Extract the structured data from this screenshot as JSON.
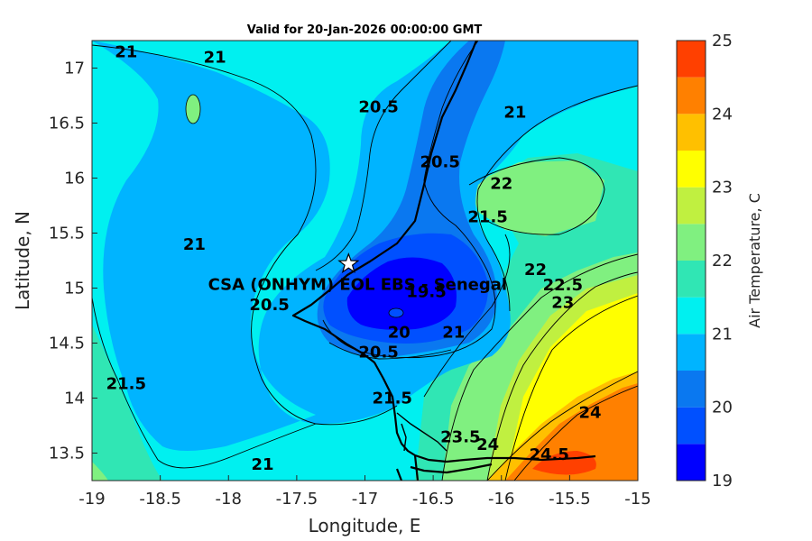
{
  "title": "Valid for 20-Jan-2026 00:00:00 GMT",
  "xlabel": "Longitude, E",
  "ylabel": "Latitude, N",
  "colorbar_label": "Air Temperature, C",
  "x_ticks": [
    "-19",
    "-18.5",
    "-18",
    "-17.5",
    "-17",
    "-16.5",
    "-16",
    "-15.5",
    "-15"
  ],
  "y_ticks": [
    "13.5",
    "14",
    "14.5",
    "15",
    "15.5",
    "16",
    "16.5",
    "17"
  ],
  "colorbar_ticks": [
    "19",
    "20",
    "21",
    "22",
    "23",
    "24",
    "25"
  ],
  "colors": {
    "c19": "#0000ff",
    "c19_5": "#0050ff",
    "c20": "#0a78f0",
    "c20_5": "#00b4ff",
    "c21": "#00f0f0",
    "c21_5": "#30e6b4",
    "c22": "#80f080",
    "c22_5": "#c0f040",
    "c23": "#ffff00",
    "c23_5": "#ffc000",
    "c24": "#ff8000",
    "c24_5": "#ff4000"
  },
  "station": {
    "label": "CSA (ONHYM) EOL EBS  - Senegal",
    "lon": -17.12,
    "lat": 15.22
  },
  "chart_data": {
    "type": "heatmap",
    "title": "Valid for 20-Jan-2026 00:00:00 GMT",
    "xlabel": "Longitude, E",
    "ylabel": "Latitude, N",
    "xlim": [
      -19,
      -15
    ],
    "ylim": [
      13.25,
      17.25
    ],
    "colorbar": {
      "label": "Air Temperature, C",
      "range": [
        19,
        25
      ],
      "step": 0.5
    },
    "contour_labels": [
      {
        "text": "21",
        "lon": -18.75,
        "lat": 17.1
      },
      {
        "text": "21",
        "lon": -18.1,
        "lat": 17.05
      },
      {
        "text": "20.5",
        "lon": -16.9,
        "lat": 16.6
      },
      {
        "text": "21",
        "lon": -15.9,
        "lat": 16.55
      },
      {
        "text": "20.5",
        "lon": -16.45,
        "lat": 16.1
      },
      {
        "text": "22",
        "lon": -16.0,
        "lat": 15.9
      },
      {
        "text": "21.5",
        "lon": -16.1,
        "lat": 15.6
      },
      {
        "text": "21",
        "lon": -18.25,
        "lat": 15.35
      },
      {
        "text": "20.5",
        "lon": -17.7,
        "lat": 14.8
      },
      {
        "text": "19.5",
        "lon": -16.55,
        "lat": 14.92
      },
      {
        "text": "22",
        "lon": -15.75,
        "lat": 15.12
      },
      {
        "text": "22.5",
        "lon": -15.55,
        "lat": 14.98
      },
      {
        "text": "23",
        "lon": -15.55,
        "lat": 14.82
      },
      {
        "text": "20",
        "lon": -16.75,
        "lat": 14.55
      },
      {
        "text": "21",
        "lon": -16.35,
        "lat": 14.55
      },
      {
        "text": "20.5",
        "lon": -16.9,
        "lat": 14.37
      },
      {
        "text": "21.5",
        "lon": -18.75,
        "lat": 14.08
      },
      {
        "text": "21.5",
        "lon": -16.8,
        "lat": 13.95
      },
      {
        "text": "24",
        "lon": -15.35,
        "lat": 13.82
      },
      {
        "text": "23.5",
        "lon": -16.3,
        "lat": 13.6
      },
      {
        "text": "24",
        "lon": -16.1,
        "lat": 13.53
      },
      {
        "text": "24.5",
        "lon": -15.65,
        "lat": 13.44
      },
      {
        "text": "21",
        "lon": -17.75,
        "lat": 13.35
      }
    ]
  }
}
